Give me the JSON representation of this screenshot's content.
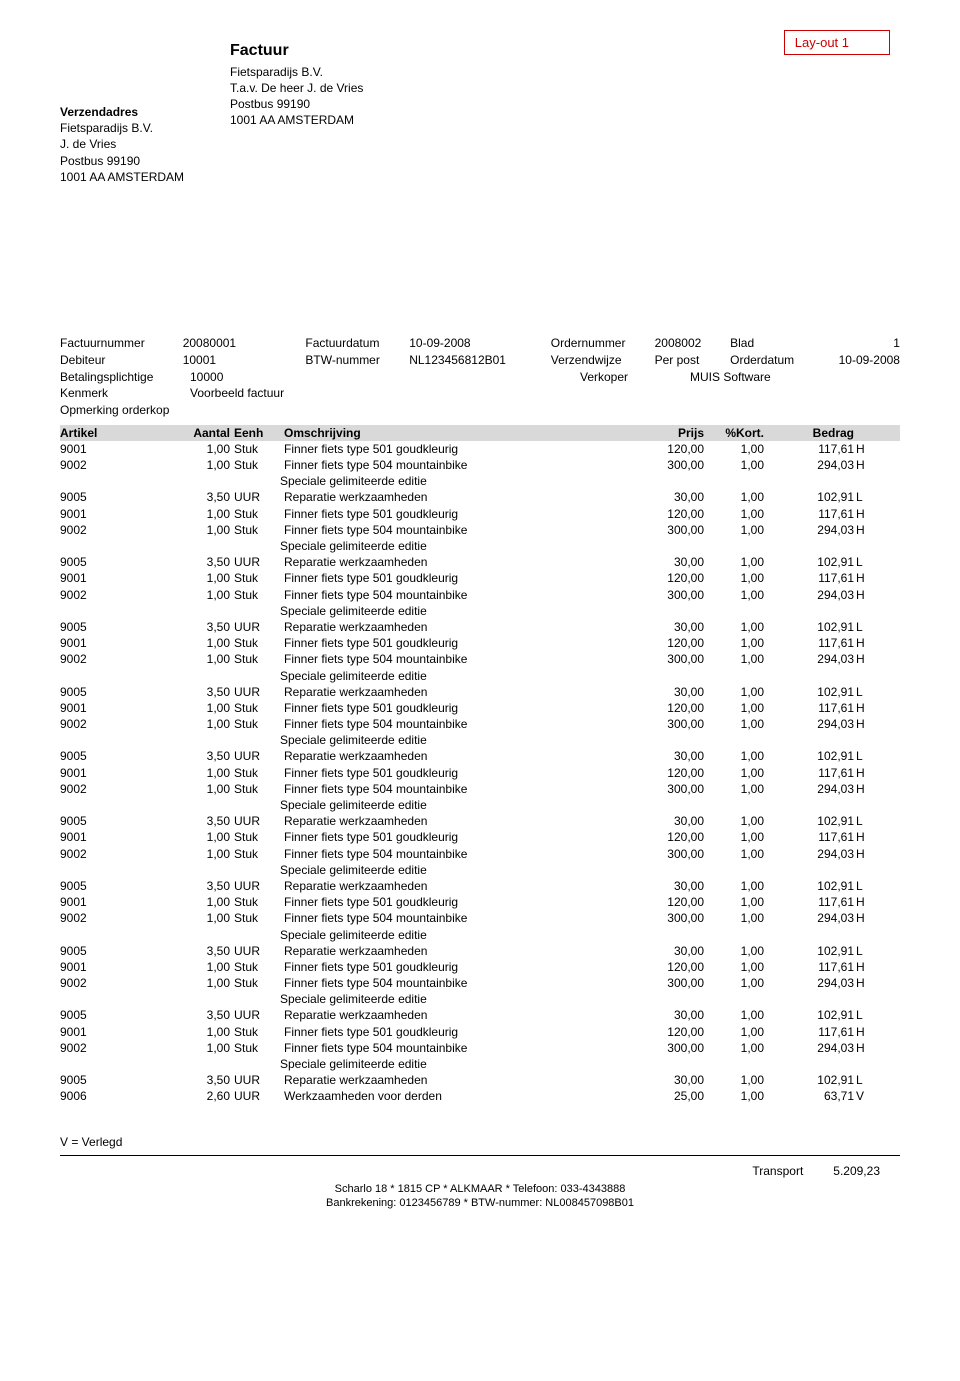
{
  "layout_label": "Lay-out 1",
  "document_title": "Factuur",
  "sender": {
    "title": "Verzendadres",
    "name": "Fietsparadijs B.V.",
    "attn": "J. de Vries",
    "pobox": "Postbus 99190",
    "city": "1001 AA   AMSTERDAM"
  },
  "recipient": {
    "name": "Fietsparadijs B.V.",
    "attn": "T.a.v. De heer J. de Vries",
    "pobox": "Postbus 99190",
    "city": "1001 AA   AMSTERDAM"
  },
  "meta": {
    "factuurnummer_lbl": "Factuurnummer",
    "factuurnummer": "20080001",
    "factuurdatum_lbl": "Factuurdatum",
    "factuurdatum": "10-09-2008",
    "ordernummer_lbl": "Ordernummer",
    "ordernummer": "2008002",
    "blad_lbl": "Blad",
    "blad": "1",
    "debiteur_lbl": "Debiteur",
    "debiteur": "10001",
    "btw_lbl": "BTW-nummer",
    "btw": "NL123456812B01",
    "verzendwijze_lbl": "Verzendwijze",
    "verzendwijze": "Per post",
    "orderdatum_lbl": "Orderdatum",
    "orderdatum": "10-09-2008",
    "betalingsplichtige_lbl": "Betalingsplichtige",
    "betalingsplichtige": "10000",
    "verkoper_lbl": "Verkoper",
    "verkoper": "MUIS Software",
    "kenmerk_lbl": "Kenmerk",
    "kenmerk": "Voorbeeld factuur",
    "opmerking_lbl": "Opmerking orderkop"
  },
  "columns": {
    "artikel": "Artikel",
    "aantal": "Aantal",
    "eenh": "Eenh",
    "omschrijving": "Omschrijving",
    "prijs": "Prijs",
    "kort": "%Kort.",
    "bedrag": "Bedrag"
  },
  "lines": [
    {
      "art": "9001",
      "qty": "1,00",
      "unit": "Stuk",
      "desc": "Finner fiets type 501 goudkleurig",
      "price": "120,00",
      "kort": "1,00",
      "amt": "117,61",
      "code": "H"
    },
    {
      "art": "9002",
      "qty": "1,00",
      "unit": "Stuk",
      "desc": "Finner fiets type 504 mountainbike",
      "sub": "Speciale gelimiteerde editie",
      "price": "300,00",
      "kort": "1,00",
      "amt": "294,03",
      "code": "H"
    },
    {
      "art": "9005",
      "qty": "3,50",
      "unit": "UUR",
      "desc": "Reparatie werkzaamheden",
      "price": "30,00",
      "kort": "1,00",
      "amt": "102,91",
      "code": "L"
    },
    {
      "art": "9001",
      "qty": "1,00",
      "unit": "Stuk",
      "desc": "Finner fiets type 501 goudkleurig",
      "price": "120,00",
      "kort": "1,00",
      "amt": "117,61",
      "code": "H"
    },
    {
      "art": "9002",
      "qty": "1,00",
      "unit": "Stuk",
      "desc": "Finner fiets type 504 mountainbike",
      "sub": "Speciale gelimiteerde editie",
      "price": "300,00",
      "kort": "1,00",
      "amt": "294,03",
      "code": "H"
    },
    {
      "art": "9005",
      "qty": "3,50",
      "unit": "UUR",
      "desc": "Reparatie werkzaamheden",
      "price": "30,00",
      "kort": "1,00",
      "amt": "102,91",
      "code": "L"
    },
    {
      "art": "9001",
      "qty": "1,00",
      "unit": "Stuk",
      "desc": "Finner fiets type 501 goudkleurig",
      "price": "120,00",
      "kort": "1,00",
      "amt": "117,61",
      "code": "H"
    },
    {
      "art": "9002",
      "qty": "1,00",
      "unit": "Stuk",
      "desc": "Finner fiets type 504 mountainbike",
      "sub": "Speciale gelimiteerde editie",
      "price": "300,00",
      "kort": "1,00",
      "amt": "294,03",
      "code": "H"
    },
    {
      "art": "9005",
      "qty": "3,50",
      "unit": "UUR",
      "desc": "Reparatie werkzaamheden",
      "price": "30,00",
      "kort": "1,00",
      "amt": "102,91",
      "code": "L"
    },
    {
      "art": "9001",
      "qty": "1,00",
      "unit": "Stuk",
      "desc": "Finner fiets type 501 goudkleurig",
      "price": "120,00",
      "kort": "1,00",
      "amt": "117,61",
      "code": "H"
    },
    {
      "art": "9002",
      "qty": "1,00",
      "unit": "Stuk",
      "desc": "Finner fiets type 504 mountainbike",
      "sub": "Speciale gelimiteerde editie",
      "price": "300,00",
      "kort": "1,00",
      "amt": "294,03",
      "code": "H"
    },
    {
      "art": "9005",
      "qty": "3,50",
      "unit": "UUR",
      "desc": "Reparatie werkzaamheden",
      "price": "30,00",
      "kort": "1,00",
      "amt": "102,91",
      "code": "L"
    },
    {
      "art": "9001",
      "qty": "1,00",
      "unit": "Stuk",
      "desc": "Finner fiets type 501 goudkleurig",
      "price": "120,00",
      "kort": "1,00",
      "amt": "117,61",
      "code": "H"
    },
    {
      "art": "9002",
      "qty": "1,00",
      "unit": "Stuk",
      "desc": "Finner fiets type 504 mountainbike",
      "sub": "Speciale gelimiteerde editie",
      "price": "300,00",
      "kort": "1,00",
      "amt": "294,03",
      "code": "H"
    },
    {
      "art": "9005",
      "qty": "3,50",
      "unit": "UUR",
      "desc": "Reparatie werkzaamheden",
      "price": "30,00",
      "kort": "1,00",
      "amt": "102,91",
      "code": "L"
    },
    {
      "art": "9001",
      "qty": "1,00",
      "unit": "Stuk",
      "desc": "Finner fiets type 501 goudkleurig",
      "price": "120,00",
      "kort": "1,00",
      "amt": "117,61",
      "code": "H"
    },
    {
      "art": "9002",
      "qty": "1,00",
      "unit": "Stuk",
      "desc": "Finner fiets type 504 mountainbike",
      "sub": "Speciale gelimiteerde editie",
      "price": "300,00",
      "kort": "1,00",
      "amt": "294,03",
      "code": "H"
    },
    {
      "art": "9005",
      "qty": "3,50",
      "unit": "UUR",
      "desc": "Reparatie werkzaamheden",
      "price": "30,00",
      "kort": "1,00",
      "amt": "102,91",
      "code": "L"
    },
    {
      "art": "9001",
      "qty": "1,00",
      "unit": "Stuk",
      "desc": "Finner fiets type 501 goudkleurig",
      "price": "120,00",
      "kort": "1,00",
      "amt": "117,61",
      "code": "H"
    },
    {
      "art": "9002",
      "qty": "1,00",
      "unit": "Stuk",
      "desc": "Finner fiets type 504 mountainbike",
      "sub": "Speciale gelimiteerde editie",
      "price": "300,00",
      "kort": "1,00",
      "amt": "294,03",
      "code": "H"
    },
    {
      "art": "9005",
      "qty": "3,50",
      "unit": "UUR",
      "desc": "Reparatie werkzaamheden",
      "price": "30,00",
      "kort": "1,00",
      "amt": "102,91",
      "code": "L"
    },
    {
      "art": "9001",
      "qty": "1,00",
      "unit": "Stuk",
      "desc": "Finner fiets type 501 goudkleurig",
      "price": "120,00",
      "kort": "1,00",
      "amt": "117,61",
      "code": "H"
    },
    {
      "art": "9002",
      "qty": "1,00",
      "unit": "Stuk",
      "desc": "Finner fiets type 504 mountainbike",
      "sub": "Speciale gelimiteerde editie",
      "price": "300,00",
      "kort": "1,00",
      "amt": "294,03",
      "code": "H"
    },
    {
      "art": "9005",
      "qty": "3,50",
      "unit": "UUR",
      "desc": "Reparatie werkzaamheden",
      "price": "30,00",
      "kort": "1,00",
      "amt": "102,91",
      "code": "L"
    },
    {
      "art": "9001",
      "qty": "1,00",
      "unit": "Stuk",
      "desc": "Finner fiets type 501 goudkleurig",
      "price": "120,00",
      "kort": "1,00",
      "amt": "117,61",
      "code": "H"
    },
    {
      "art": "9002",
      "qty": "1,00",
      "unit": "Stuk",
      "desc": "Finner fiets type 504 mountainbike",
      "sub": "Speciale gelimiteerde editie",
      "price": "300,00",
      "kort": "1,00",
      "amt": "294,03",
      "code": "H"
    },
    {
      "art": "9005",
      "qty": "3,50",
      "unit": "UUR",
      "desc": "Reparatie werkzaamheden",
      "price": "30,00",
      "kort": "1,00",
      "amt": "102,91",
      "code": "L"
    },
    {
      "art": "9001",
      "qty": "1,00",
      "unit": "Stuk",
      "desc": "Finner fiets type 501 goudkleurig",
      "price": "120,00",
      "kort": "1,00",
      "amt": "117,61",
      "code": "H"
    },
    {
      "art": "9002",
      "qty": "1,00",
      "unit": "Stuk",
      "desc": "Finner fiets type 504 mountainbike",
      "sub": "Speciale gelimiteerde editie",
      "price": "300,00",
      "kort": "1,00",
      "amt": "294,03",
      "code": "H"
    },
    {
      "art": "9005",
      "qty": "3,50",
      "unit": "UUR",
      "desc": "Reparatie werkzaamheden",
      "price": "30,00",
      "kort": "1,00",
      "amt": "102,91",
      "code": "L"
    },
    {
      "art": "9006",
      "qty": "2,60",
      "unit": "UUR",
      "desc": "Werkzaamheden voor derden",
      "price": "25,00",
      "kort": "1,00",
      "amt": "63,71",
      "code": "V"
    }
  ],
  "legend": "V = Verlegd",
  "transport_lbl": "Transport",
  "transport_val": "5.209,23",
  "footer1": "Scharlo 18 * 1815 CP * ALKMAAR * Telefoon: 033-4343888",
  "footer2": "Bankrekening: 0123456789 * BTW-nummer: NL008457098B01"
}
